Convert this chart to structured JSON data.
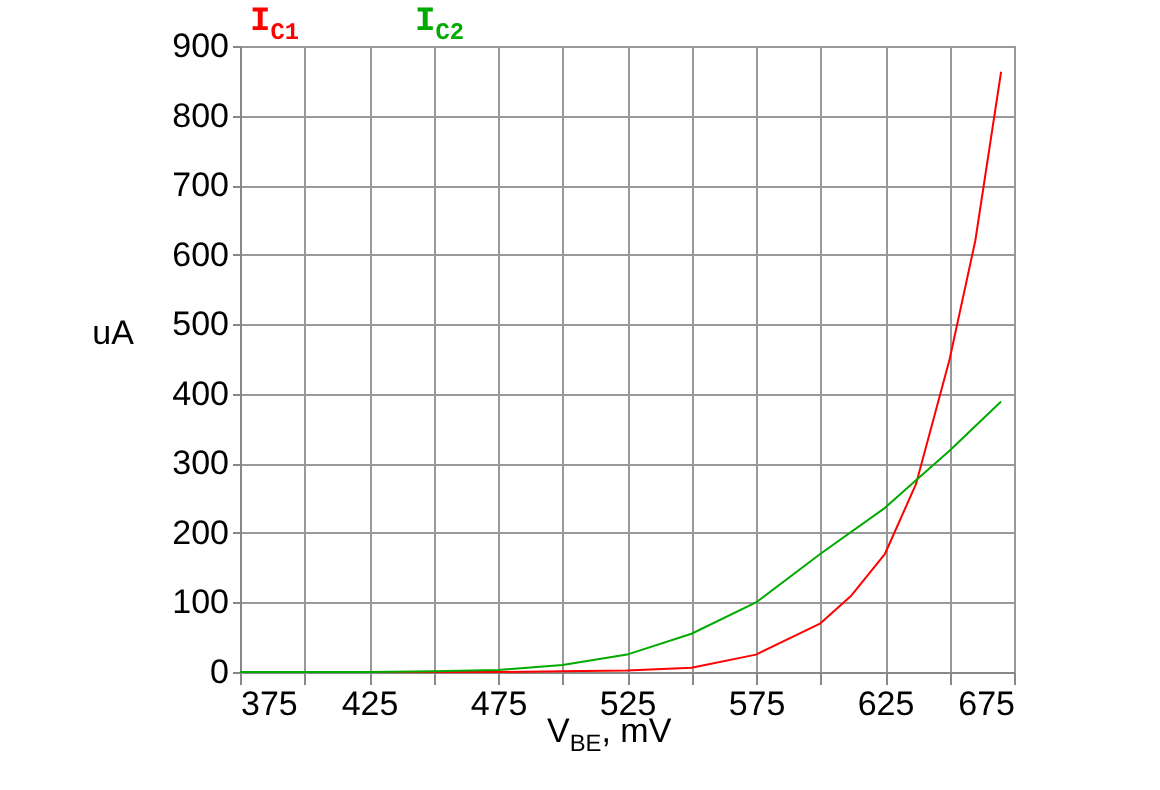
{
  "chart_data": {
    "type": "line",
    "xlabel": "V$_{BE}$, mV",
    "ylabel": "uA",
    "legend": "top left",
    "grid": true,
    "xlim": [
      375,
      675
    ],
    "ylim": [
      0,
      900
    ],
    "xticks": [
      375,
      {
        "value": 400,
        "label": null
      },
      425,
      {
        "value": 450,
        "label": null
      },
      475,
      {
        "value": 500,
        "label": null
      },
      525,
      {
        "value": 550,
        "label": null
      },
      575,
      {
        "value": 600,
        "label": null
      },
      625,
      {
        "value": 650,
        "label": null
      },
      675
    ],
    "yticks": [
      0,
      100,
      200,
      300,
      400,
      500,
      600,
      700,
      800,
      900
    ],
    "series": [
      {
        "name": "I$_{C1}$",
        "color": "#ff0000",
        "x": [
          375,
          450,
          475,
          500,
          525,
          550,
          575,
          600,
          612,
          625,
          637,
          650,
          660,
          670
        ],
        "values": [
          0,
          0,
          0,
          1,
          2,
          6,
          25,
          70,
          110,
          170,
          270,
          449,
          620,
          863
        ]
      },
      {
        "name": "I$_{C2}$",
        "color": "#00aa00",
        "x": [
          375,
          425,
          450,
          475,
          500,
          525,
          550,
          575,
          600,
          625,
          638,
          650,
          670
        ],
        "values": [
          0,
          0,
          1,
          3,
          10,
          25,
          55,
          100,
          170,
          236,
          279,
          318,
          389
        ]
      }
    ]
  }
}
